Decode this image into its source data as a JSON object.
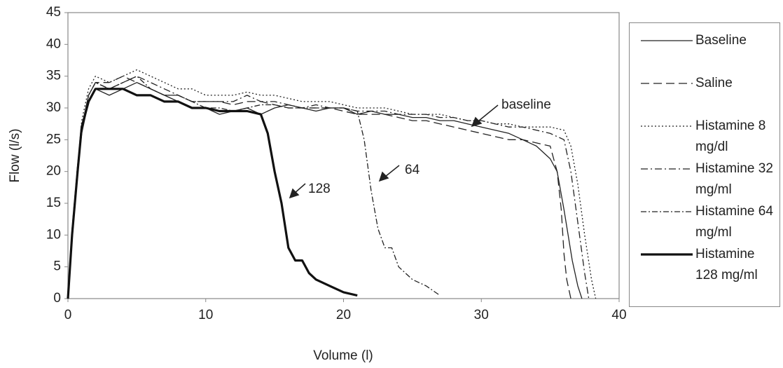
{
  "chart_data": {
    "type": "line",
    "x_label": "Volume (l)",
    "y_label": "Flow (l/s)",
    "xlim": [
      0,
      40
    ],
    "xticks": [
      0,
      10,
      20,
      30,
      40
    ],
    "ylim": [
      0,
      45
    ],
    "yticks": [
      0,
      5,
      10,
      15,
      20,
      25,
      30,
      35,
      40,
      45
    ],
    "grid": false,
    "legend": "right",
    "series": [
      {
        "name": "Baseline",
        "color": "#222",
        "width": 1.3,
        "dash": "none",
        "x": [
          0,
          0.3,
          0.7,
          1,
          1.5,
          2,
          3,
          4,
          5,
          6,
          7,
          8,
          9,
          10,
          11,
          12,
          13,
          14,
          15,
          16,
          17,
          18,
          19,
          20,
          21,
          22,
          23,
          24,
          25,
          26,
          27,
          28,
          29,
          30,
          31,
          32,
          33,
          34,
          35,
          35.5,
          36,
          36.3,
          36.6,
          37,
          37.3
        ],
        "values": [
          0,
          10,
          20,
          26,
          31,
          33,
          32,
          33,
          34,
          33,
          32,
          31,
          30,
          30,
          29,
          29.5,
          30,
          29,
          30,
          30.5,
          30,
          29.5,
          30,
          30,
          29,
          29.5,
          29,
          29,
          28.5,
          28.5,
          28,
          28,
          27.5,
          27,
          26.5,
          26,
          25,
          24,
          22,
          20,
          14,
          10,
          6,
          2,
          0
        ]
      },
      {
        "name": "Saline",
        "color": "#222",
        "width": 1.3,
        "dash": "12,6",
        "x": [
          0,
          0.3,
          0.7,
          1,
          1.5,
          2,
          3,
          4,
          5,
          6,
          7,
          8,
          9,
          10,
          11,
          12,
          13,
          14,
          15,
          16,
          17,
          18,
          19,
          20,
          21,
          22,
          23,
          24,
          25,
          26,
          27,
          28,
          29,
          30,
          31,
          32,
          33,
          34,
          35,
          35.5,
          35.8,
          36,
          36.2,
          36.5
        ],
        "values": [
          0,
          11,
          21,
          27,
          32,
          34,
          34,
          35,
          34,
          33,
          32,
          32,
          31,
          31,
          31,
          30.5,
          31,
          31,
          30.5,
          30,
          30,
          30,
          30,
          29.5,
          29,
          29,
          29,
          28.5,
          28,
          28,
          27.5,
          27,
          26.5,
          26,
          25.5,
          25,
          25,
          24.5,
          24,
          20,
          14,
          7,
          3,
          0
        ]
      },
      {
        "name": "Histamine 8 mg/dl",
        "color": "#222",
        "width": 1.3,
        "dash": "2,3",
        "x": [
          0,
          0.3,
          0.7,
          1,
          1.5,
          2,
          3,
          4,
          5,
          6,
          7,
          8,
          9,
          10,
          11,
          12,
          13,
          14,
          15,
          16,
          17,
          18,
          19,
          20,
          21,
          22,
          23,
          24,
          25,
          26,
          27,
          28,
          29,
          30,
          31,
          32,
          33,
          34,
          35,
          36,
          36.5,
          37,
          37.5,
          38,
          38.3
        ],
        "values": [
          0,
          10,
          21,
          28,
          33,
          35,
          34,
          35,
          36,
          35,
          34,
          33,
          33,
          32,
          32,
          32,
          32.5,
          32,
          32,
          31.5,
          31,
          31,
          31,
          30.5,
          30,
          30,
          30,
          29.5,
          29,
          29,
          29,
          28.5,
          28,
          28,
          27.5,
          27.5,
          27,
          27,
          27,
          26.5,
          24,
          18,
          10,
          3,
          0
        ]
      },
      {
        "name": "Histamine 32 mg/ml",
        "color": "#222",
        "width": 1.3,
        "dash": "10,4,2,4",
        "x": [
          0,
          0.3,
          0.7,
          1,
          1.5,
          2,
          3,
          4,
          5,
          6,
          7,
          8,
          9,
          10,
          11,
          12,
          13,
          14,
          15,
          16,
          17,
          18,
          19,
          20,
          21,
          22,
          23,
          24,
          25,
          26,
          27,
          28,
          29,
          30,
          31,
          32,
          33,
          34,
          35,
          36,
          36.5,
          37,
          37.5,
          37.8
        ],
        "values": [
          0,
          9,
          20,
          27,
          32,
          34,
          33,
          34,
          35,
          34,
          33,
          32,
          31,
          31,
          31,
          31,
          32,
          31,
          31,
          30.5,
          30,
          30.5,
          30,
          30,
          29.5,
          29.5,
          29.5,
          29,
          29,
          29,
          28.5,
          28.5,
          28,
          28,
          27.5,
          27,
          27,
          26.5,
          26,
          25,
          20,
          12,
          4,
          0
        ]
      },
      {
        "name": "Histamine 64 mg/ml",
        "color": "#222",
        "width": 1.3,
        "dash": "8,3,2,3",
        "x": [
          0,
          0.3,
          0.7,
          1,
          1.5,
          2,
          3,
          4,
          5,
          6,
          7,
          8,
          9,
          10,
          11,
          12,
          13,
          14,
          15,
          16,
          17,
          18,
          19,
          20,
          21,
          21.5,
          22,
          22.5,
          23,
          23.5,
          24,
          25,
          26,
          27
        ],
        "values": [
          0,
          10,
          21,
          27,
          32,
          34,
          33,
          34,
          35,
          33,
          32,
          32,
          31,
          30,
          30,
          29.5,
          30,
          30.5,
          30.5,
          30,
          30,
          30,
          30,
          30,
          29.5,
          25,
          17,
          11,
          8,
          8,
          5,
          3,
          2,
          0.5
        ]
      },
      {
        "name": "Histamine 128 mg/ml",
        "color": "#111",
        "width": 3.2,
        "dash": "none",
        "x": [
          0,
          0.3,
          0.7,
          1,
          1.5,
          2,
          3,
          4,
          5,
          6,
          7,
          8,
          9,
          10,
          11,
          12,
          13,
          14,
          14.5,
          15,
          15.5,
          16,
          16.5,
          17,
          17.5,
          18,
          19,
          20,
          21
        ],
        "values": [
          0,
          10,
          20,
          27,
          31,
          33,
          33,
          33,
          32,
          32,
          31,
          31,
          30,
          30,
          29.5,
          29.5,
          29.5,
          29,
          26,
          20,
          15,
          8,
          6,
          6,
          4,
          3,
          2,
          1,
          0.5
        ]
      }
    ],
    "annotations": [
      "128",
      "64",
      "baseline"
    ]
  }
}
